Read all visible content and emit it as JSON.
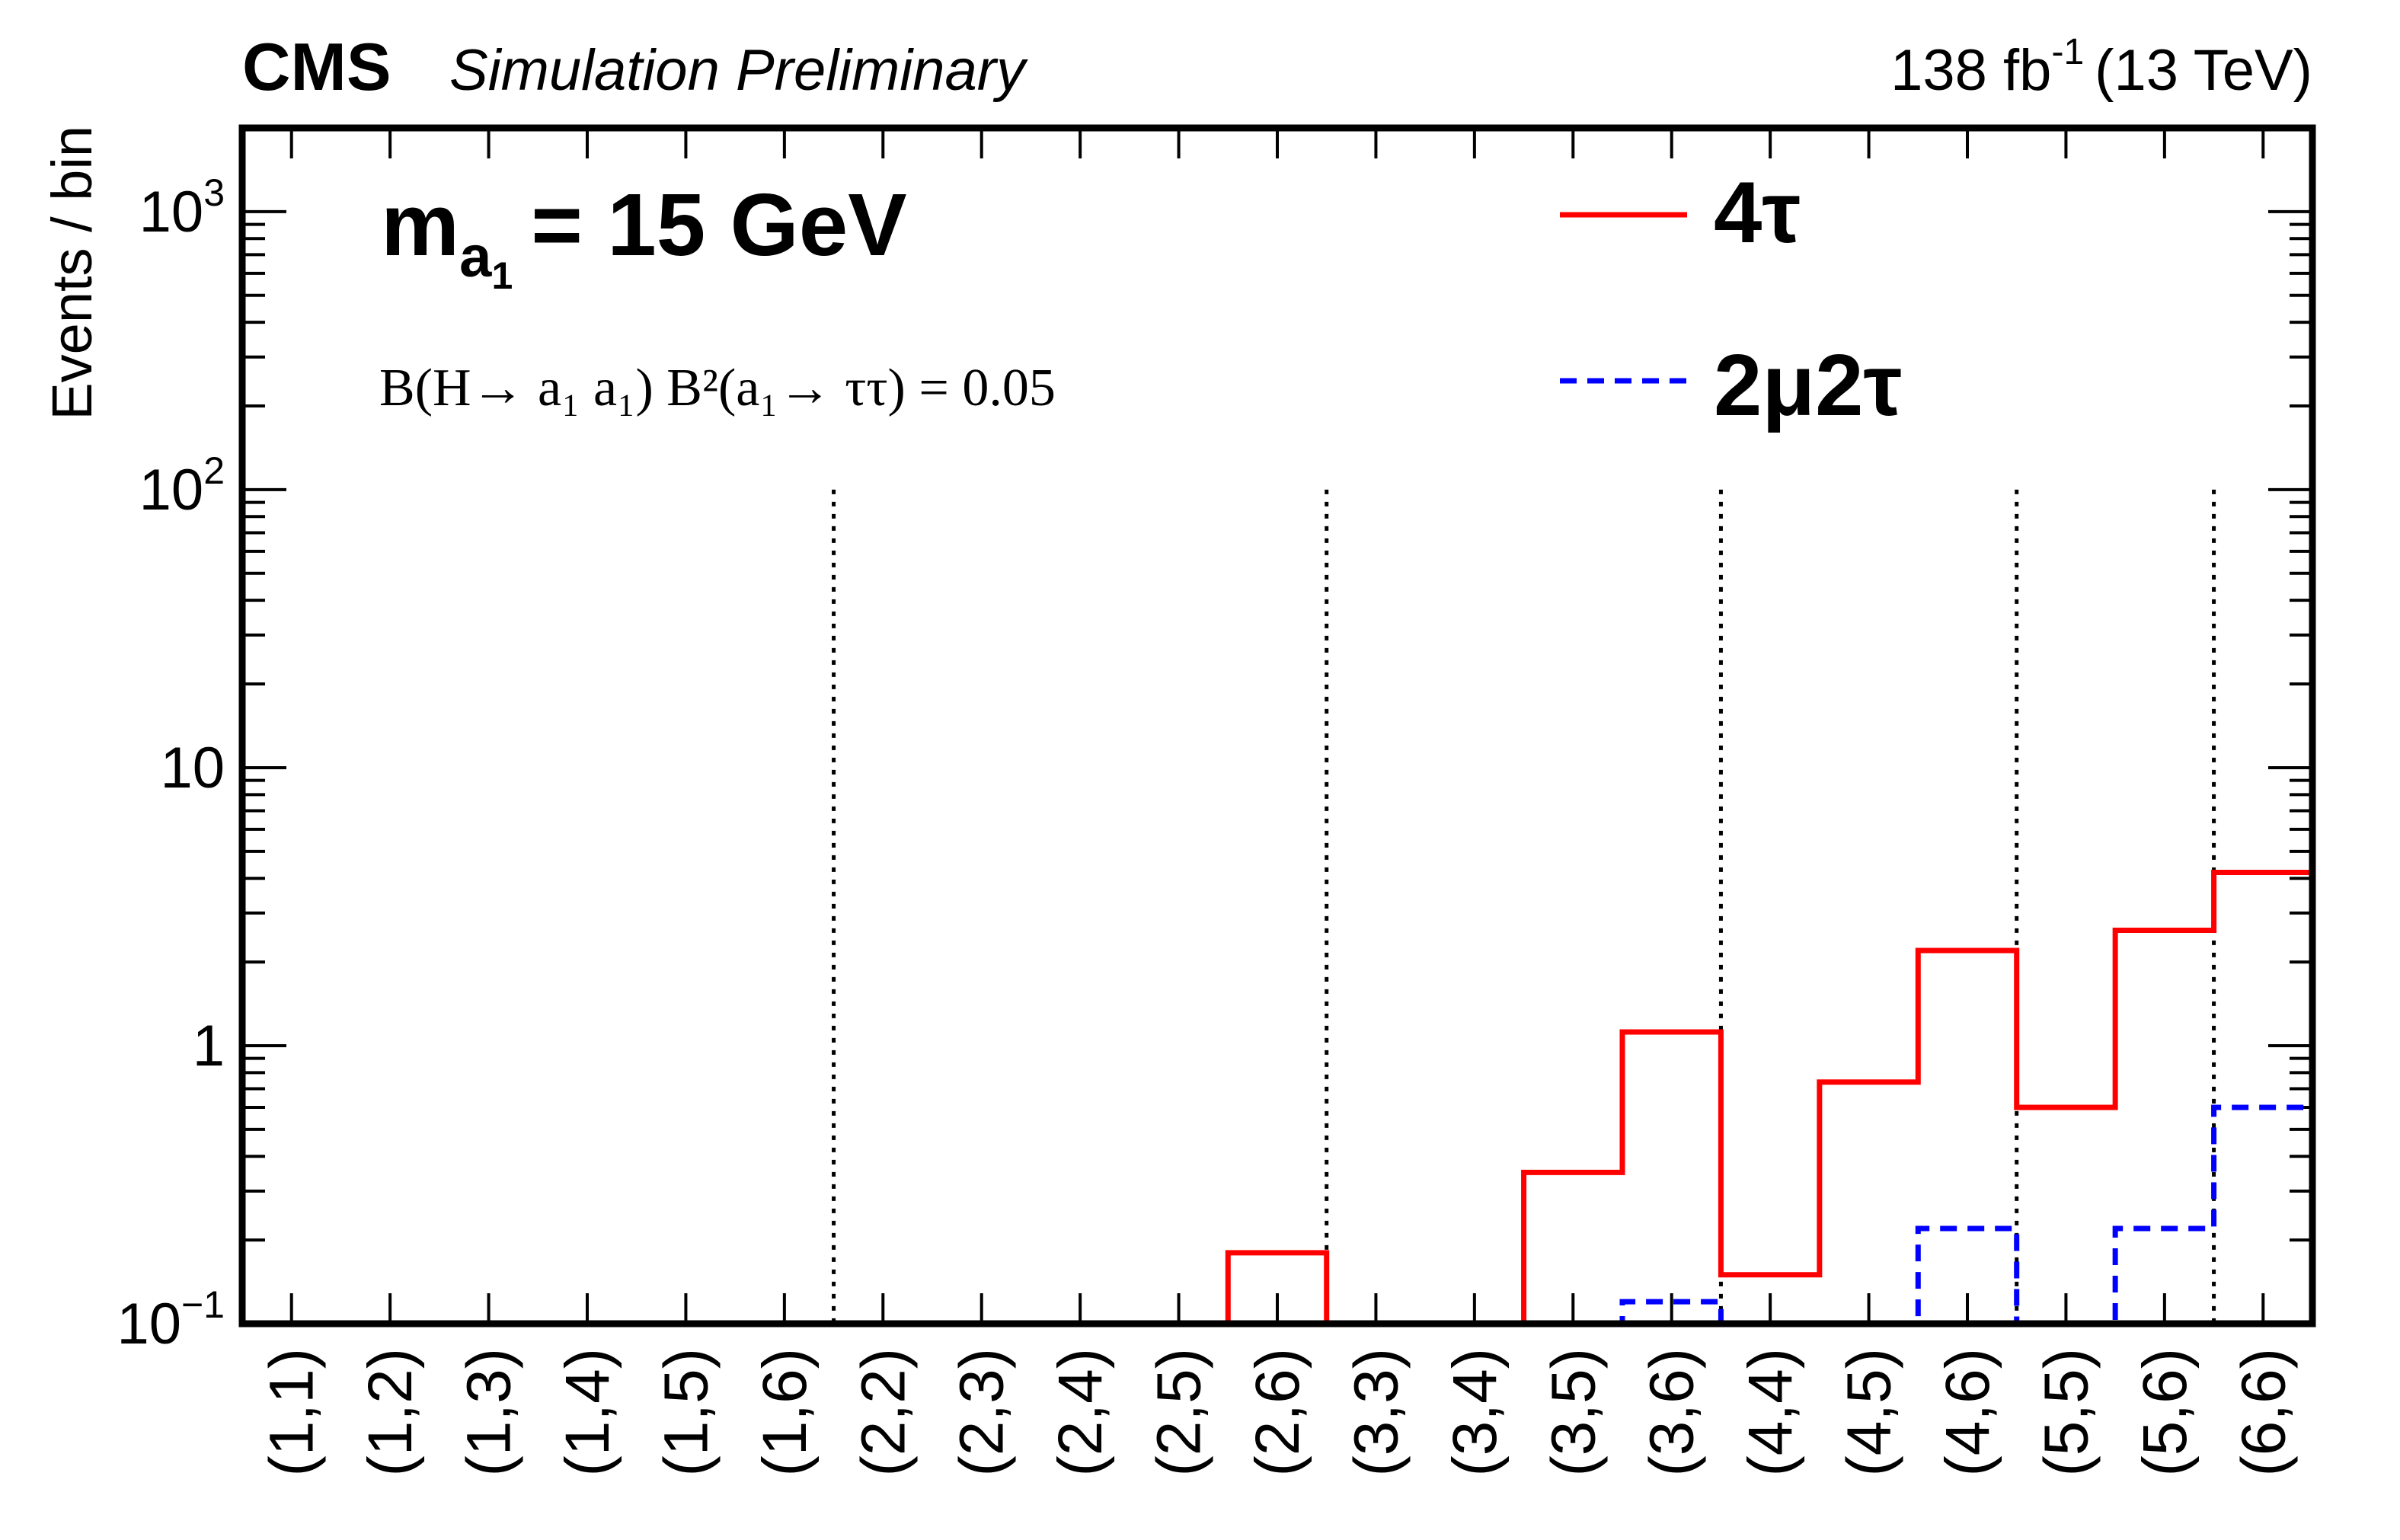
{
  "header": {
    "cms": "CMS",
    "status": "Simulation Preliminary",
    "lumi": "138 fb",
    "lumi_exp": "-1",
    "energy": "(13 TeV)"
  },
  "annotations": {
    "mass_m": "m",
    "mass_sub": "a",
    "mass_subsub": "1",
    "mass_value": "= 15 GeV",
    "br_text": "B(H→ a₁ a₁) B²(a₁→ ττ) = 0.05"
  },
  "chart_data": {
    "type": "line",
    "title": "",
    "xlabel": "",
    "ylabel": "Events / bin",
    "yscale": "log",
    "ylim": [
      0.1,
      2000
    ],
    "yticks": [
      {
        "value": 0.1,
        "base": "10",
        "exp": "−1"
      },
      {
        "value": 1,
        "base": "1",
        "exp": ""
      },
      {
        "value": 10,
        "base": "10",
        "exp": ""
      },
      {
        "value": 100,
        "base": "10",
        "exp": "2"
      },
      {
        "value": 1000,
        "base": "10",
        "exp": "3"
      }
    ],
    "categories": [
      "(1,1)",
      "(1,2)",
      "(1,3)",
      "(1,4)",
      "(1,5)",
      "(1,6)",
      "(2,2)",
      "(2,3)",
      "(2,4)",
      "(2,5)",
      "(2,6)",
      "(3,3)",
      "(3,4)",
      "(3,5)",
      "(3,6)",
      "(4,4)",
      "(4,5)",
      "(4,6)",
      "(5,5)",
      "(5,6)",
      "(6,6)"
    ],
    "separators_after": [
      "(1,6)",
      "(2,6)",
      "(3,6)",
      "(4,6)",
      "(5,6)"
    ],
    "series": [
      {
        "name": "4τ",
        "color": "#ff0000",
        "style": "solid",
        "values": [
          0.1,
          0.1,
          0.1,
          0.1,
          0.1,
          0.1,
          0.1,
          0.1,
          0.1,
          0.1,
          0.18,
          0.1,
          0.1,
          0.35,
          1.12,
          0.15,
          0.74,
          2.2,
          0.6,
          2.6,
          4.2
        ]
      },
      {
        "name": "2μ2τ",
        "color": "#0000ff",
        "style": "dashed",
        "values": [
          0.1,
          0.1,
          0.1,
          0.1,
          0.1,
          0.1,
          0.1,
          0.1,
          0.1,
          0.1,
          0.1,
          0.1,
          0.1,
          0.1,
          0.12,
          0.1,
          0.1,
          0.22,
          0.1,
          0.22,
          0.6
        ]
      }
    ],
    "legend_position": "top-right",
    "grid": false
  }
}
